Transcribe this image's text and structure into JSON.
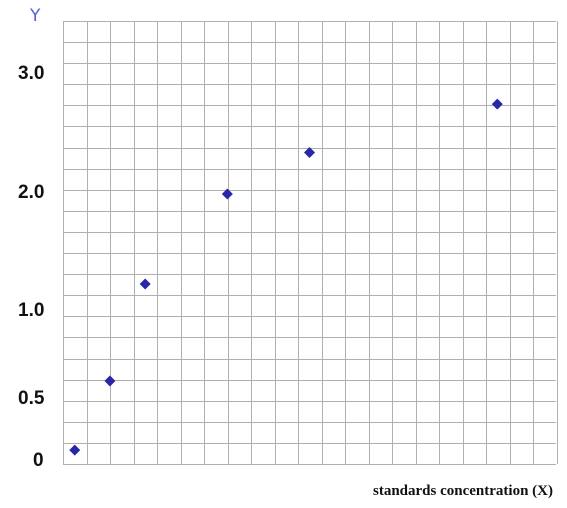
{
  "chart_data": {
    "type": "scatter",
    "title": "",
    "ylabel": "Y",
    "xlabel": "standards concentration (X)",
    "y_tick_labels": [
      "3.0",
      "2.0",
      "1.0",
      "0.5",
      "0"
    ],
    "grid": true,
    "marker": "diamond",
    "marker_color": "#2727a8",
    "grid_color": "#b0b0b0",
    "ylabel_color": "#5b5bd6",
    "series": [
      {
        "x": [
          1,
          4,
          7,
          14,
          21,
          37
        ],
        "y": [
          0.1,
          0.6,
          1.3,
          1.95,
          2.25,
          2.6
        ]
      }
    ],
    "xlim": [
      0,
      42
    ],
    "ylim": [
      0,
      3.2
    ]
  }
}
